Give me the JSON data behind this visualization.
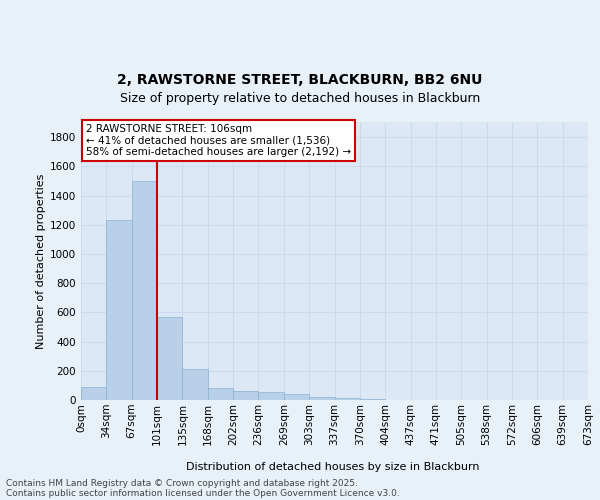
{
  "title_line1": "2, RAWSTORNE STREET, BLACKBURN, BB2 6NU",
  "title_line2": "Size of property relative to detached houses in Blackburn",
  "xlabel": "Distribution of detached houses by size in Blackburn",
  "ylabel": "Number of detached properties",
  "bar_color": "#b8d0e8",
  "bar_edge_color": "#8ab0d0",
  "background_color": "#dce8f5",
  "fig_background_color": "#e8f0f8",
  "bin_labels": [
    "0sqm",
    "34sqm",
    "67sqm",
    "101sqm",
    "135sqm",
    "168sqm",
    "202sqm",
    "236sqm",
    "269sqm",
    "303sqm",
    "337sqm",
    "370sqm",
    "404sqm",
    "437sqm",
    "471sqm",
    "505sqm",
    "538sqm",
    "572sqm",
    "606sqm",
    "639sqm",
    "673sqm"
  ],
  "bar_heights": [
    90,
    1230,
    1500,
    570,
    210,
    80,
    60,
    55,
    40,
    20,
    12,
    5,
    2,
    1,
    1,
    0,
    0,
    0,
    0,
    0
  ],
  "ylim": [
    0,
    1900
  ],
  "yticks": [
    0,
    200,
    400,
    600,
    800,
    1000,
    1200,
    1400,
    1600,
    1800
  ],
  "property_line_x": 3.0,
  "annotation_text": "2 RAWSTORNE STREET: 106sqm\n← 41% of detached houses are smaller (1,536)\n58% of semi-detached houses are larger (2,192) →",
  "annotation_box_color": "#ffffff",
  "annotation_border_color": "#cc0000",
  "property_line_color": "#cc0000",
  "footer_line1": "Contains HM Land Registry data © Crown copyright and database right 2025.",
  "footer_line2": "Contains public sector information licensed under the Open Government Licence v3.0.",
  "grid_color": "#c8d8ec",
  "title_fontsize": 10,
  "subtitle_fontsize": 9,
  "ylabel_fontsize": 8,
  "xlabel_fontsize": 8,
  "tick_fontsize": 7.5,
  "annotation_fontsize": 7.5,
  "footer_fontsize": 6.5
}
